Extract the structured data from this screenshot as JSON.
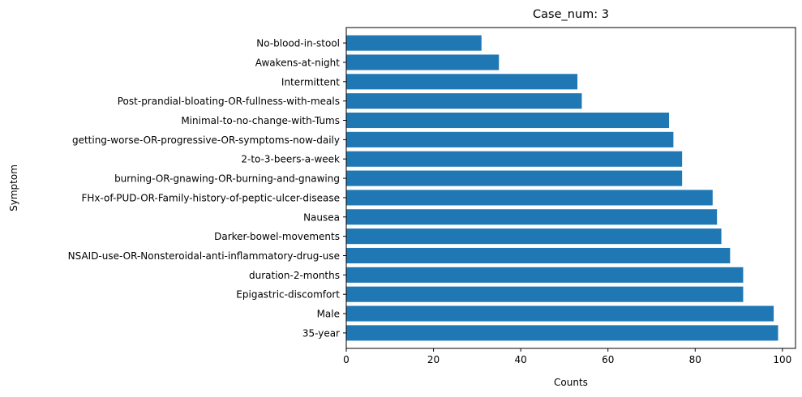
{
  "chart_data": {
    "type": "bar",
    "orientation": "horizontal",
    "title": "Case_num: 3",
    "xlabel": "Counts",
    "ylabel": "Symptom",
    "xlim": [
      0,
      103
    ],
    "xticks": [
      0,
      20,
      40,
      60,
      80,
      100
    ],
    "grid": false,
    "bar_color": "#1f77b4",
    "categories": [
      "35-year",
      "Male",
      "Epigastric-discomfort",
      "duration-2-months",
      "NSAID-use-OR-Nonsteroidal-anti-inflammatory-drug-use",
      "Darker-bowel-movements",
      "Nausea",
      "FHx-of-PUD-OR-Family-history-of-peptic-ulcer-disease",
      "burning-OR-gnawing-OR-burning-and-gnawing",
      "2-to-3-beers-a-week",
      "getting-worse-OR-progressive-OR-symptoms-now-daily",
      "Minimal-to-no-change-with-Tums",
      "Post-prandial-bloating-OR-fullness-with-meals",
      "Intermittent",
      "Awakens-at-night",
      "No-blood-in-stool"
    ],
    "values": [
      99,
      98,
      91,
      91,
      88,
      86,
      85,
      84,
      77,
      77,
      75,
      74,
      54,
      53,
      35,
      31
    ]
  }
}
